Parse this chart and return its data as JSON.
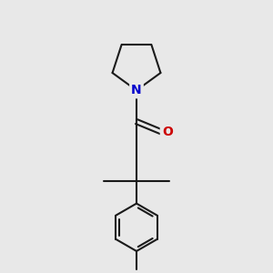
{
  "bg_color": "#e8e8e8",
  "bond_color": "#1a1a1a",
  "N_color": "#0000cc",
  "O_color": "#cc0000",
  "line_width": 1.5,
  "font_size_atom": 10,
  "figsize": [
    3.0,
    3.0
  ],
  "dpi": 100,
  "xlim": [
    2.5,
    7.5
  ],
  "ylim": [
    0.5,
    9.5
  ]
}
